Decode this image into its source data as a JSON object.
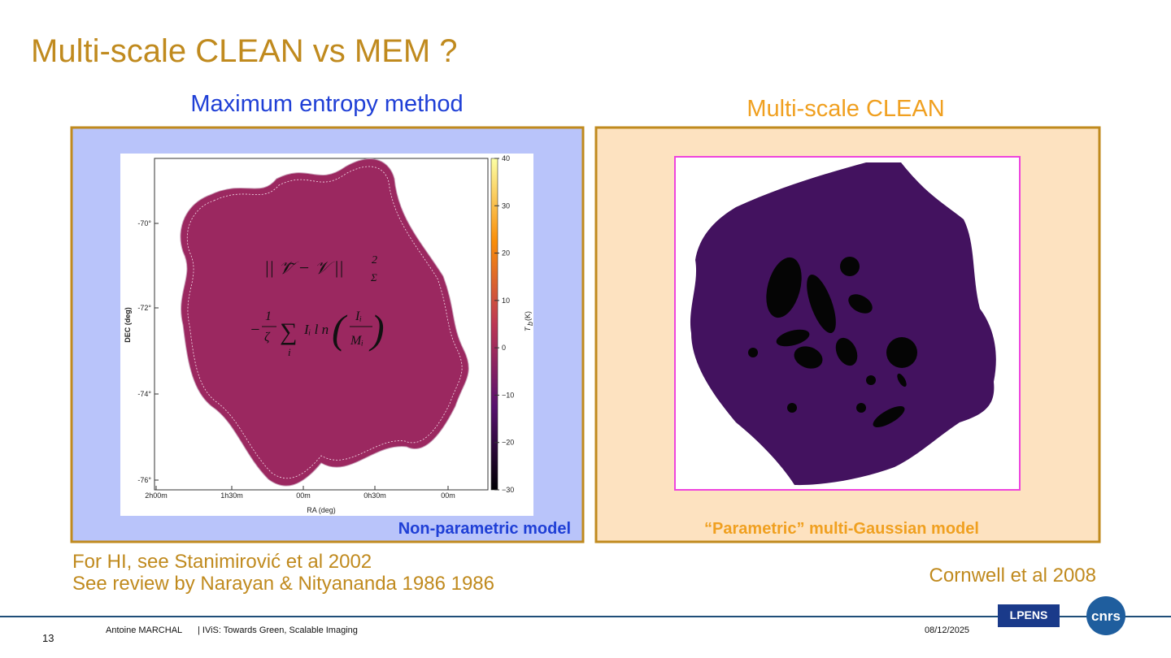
{
  "header": {
    "title": "Multi-scale CLEAN vs MEM ?"
  },
  "left_panel": {
    "heading": "Maximum entropy method",
    "caption": "Non-parametric model",
    "figure": {
      "x_label": "RA (deg)",
      "y_label": "DEC (deg)",
      "colorbar_label": "T",
      "colorbar_label_sub": "b",
      "colorbar_label_unit": "(K)",
      "y_ticks": [
        "-70°",
        "-72°",
        "-74°",
        "-76°"
      ],
      "x_ticks": [
        "2h00m",
        "1h30m",
        "00m",
        "0h30m",
        "00m"
      ],
      "colorbar_ticks": [
        "40",
        "30",
        "20",
        "10",
        "0",
        "−10",
        "−20",
        "−30"
      ],
      "formula": {
        "norm": "|| 𝒱̃ − 𝒱 ||",
        "norm_sup": "2",
        "norm_sub": "Σ",
        "minus": "−",
        "frac_num": "1",
        "frac_den": "ζ",
        "sum": "∑",
        "sum_index": "i",
        "term": "Iᵢ l n",
        "ratio_num": "Iᵢ",
        "ratio_den": "Mᵢ",
        "open_paren": "(",
        "close_paren": ")"
      }
    }
  },
  "right_panel": {
    "heading": "Multi-scale CLEAN",
    "caption": "“Parametric” multi-Gaussian model"
  },
  "references": {
    "left": [
      "For HI, see Stanimirović et al 2002",
      "See review by Narayan & Nityananda 1986 1986"
    ],
    "right": "Cornwell et al 2008"
  },
  "footer": {
    "page_number": "13",
    "author": "Antoine MARCHAL",
    "talk": "| IViS: Towards Green, Scalable Imaging",
    "date": "08/12/2025",
    "logo_lab": "LPENS",
    "logo_org": "cnrs"
  }
}
